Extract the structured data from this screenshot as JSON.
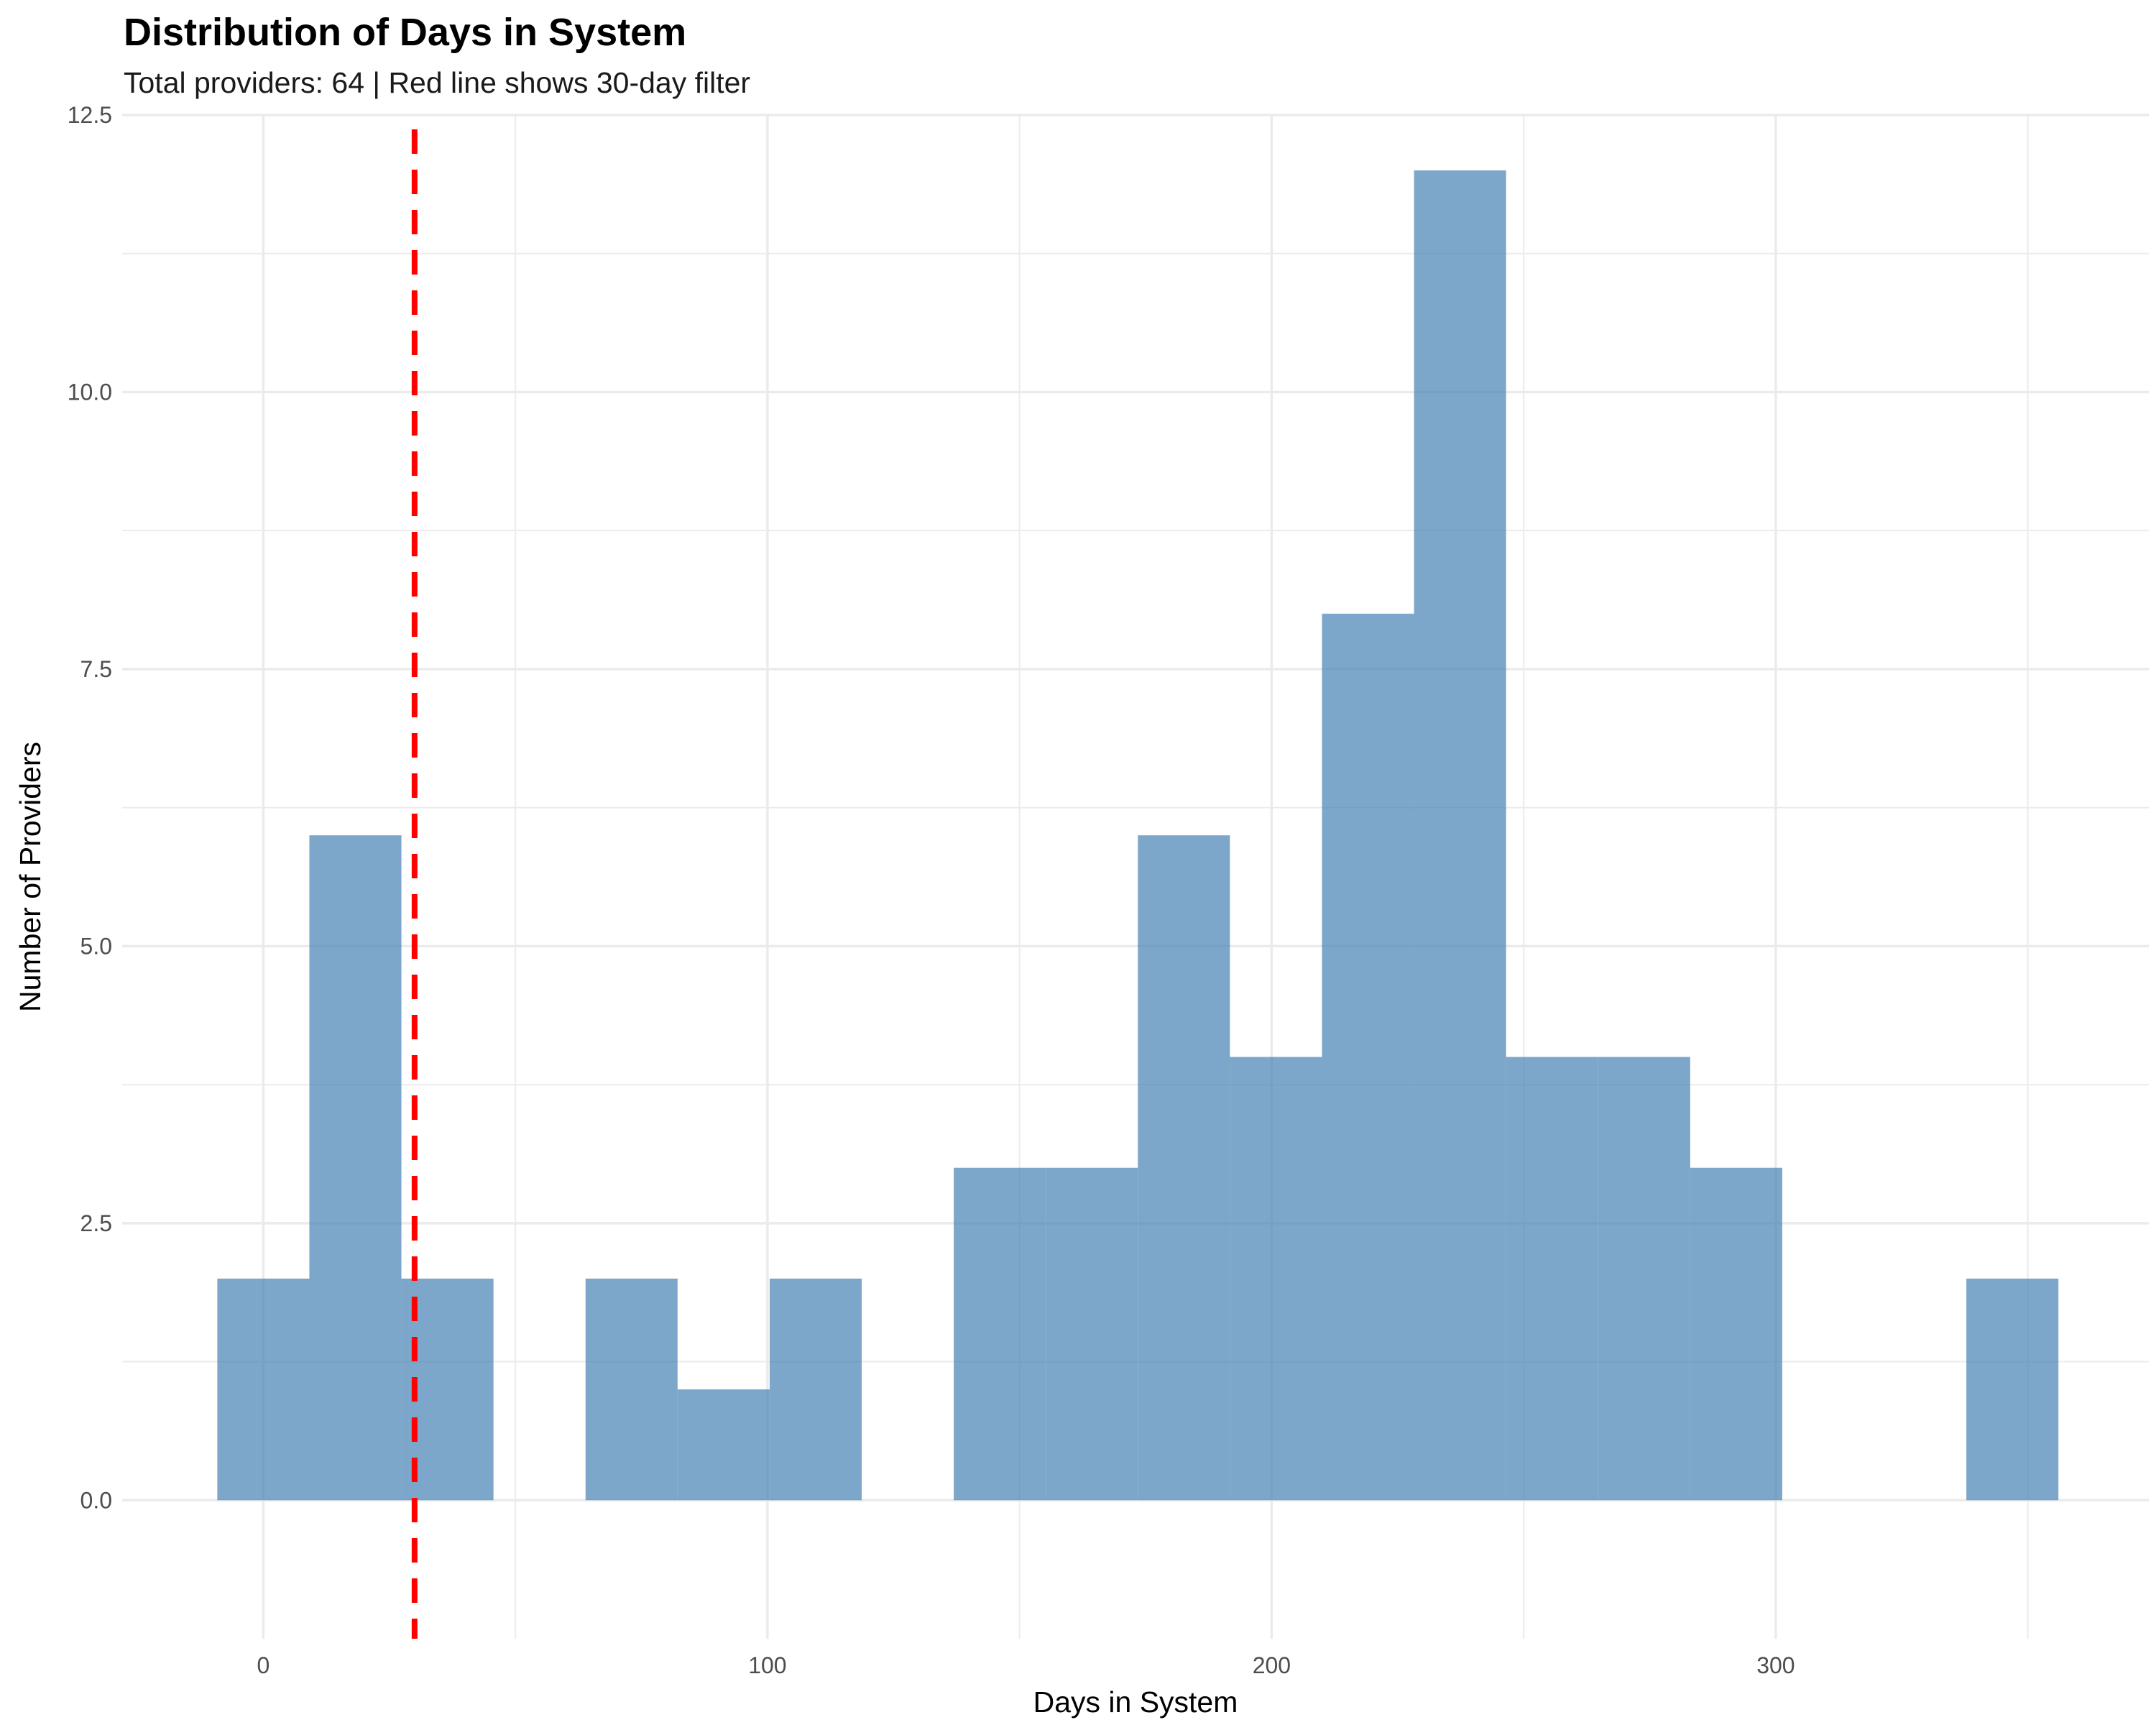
{
  "chart_data": {
    "type": "bar",
    "title": "Distribution of Days in System",
    "subtitle": "Total providers: 64 | Red line shows 30-day filter",
    "xlabel": "Days in System",
    "ylabel": "Number of Providers",
    "xlim": [
      -28,
      374
    ],
    "ylim": [
      -1.25,
      12.5
    ],
    "x_ticks": [
      0,
      100,
      200,
      300
    ],
    "x_tick_labels": [
      "0",
      "100",
      "200",
      "300"
    ],
    "y_ticks": [
      0,
      2.5,
      5,
      7.5,
      10,
      12.5
    ],
    "y_tick_labels": [
      "0.0",
      "2.5",
      "5.0",
      "7.5",
      "10.0",
      "12.5"
    ],
    "grid": true,
    "bin_width": 18.26,
    "bins": [
      {
        "start": -9.13,
        "end": 9.13,
        "count": 2
      },
      {
        "start": 9.13,
        "end": 27.39,
        "count": 6
      },
      {
        "start": 27.39,
        "end": 45.65,
        "count": 2
      },
      {
        "start": 45.65,
        "end": 63.91,
        "count": 0
      },
      {
        "start": 63.91,
        "end": 82.17,
        "count": 2
      },
      {
        "start": 82.17,
        "end": 100.43,
        "count": 1
      },
      {
        "start": 100.43,
        "end": 118.69,
        "count": 2
      },
      {
        "start": 118.69,
        "end": 136.95,
        "count": 0
      },
      {
        "start": 136.95,
        "end": 155.21,
        "count": 3
      },
      {
        "start": 155.21,
        "end": 173.47,
        "count": 3
      },
      {
        "start": 173.47,
        "end": 191.73,
        "count": 6
      },
      {
        "start": 191.73,
        "end": 209.99,
        "count": 4
      },
      {
        "start": 209.99,
        "end": 228.25,
        "count": 8
      },
      {
        "start": 228.25,
        "end": 246.51,
        "count": 12
      },
      {
        "start": 246.51,
        "end": 264.77,
        "count": 4
      },
      {
        "start": 264.77,
        "end": 283.03,
        "count": 4
      },
      {
        "start": 283.03,
        "end": 301.29,
        "count": 3
      },
      {
        "start": 301.29,
        "end": 319.55,
        "count": 0
      },
      {
        "start": 319.55,
        "end": 337.81,
        "count": 0
      },
      {
        "start": 337.81,
        "end": 356.07,
        "count": 2
      }
    ],
    "reference_line": {
      "x": 30,
      "style": "dashed"
    },
    "colors": {
      "bar": "#4682b4",
      "reference_line": "#ff0000",
      "grid": "#ebebeb"
    }
  }
}
